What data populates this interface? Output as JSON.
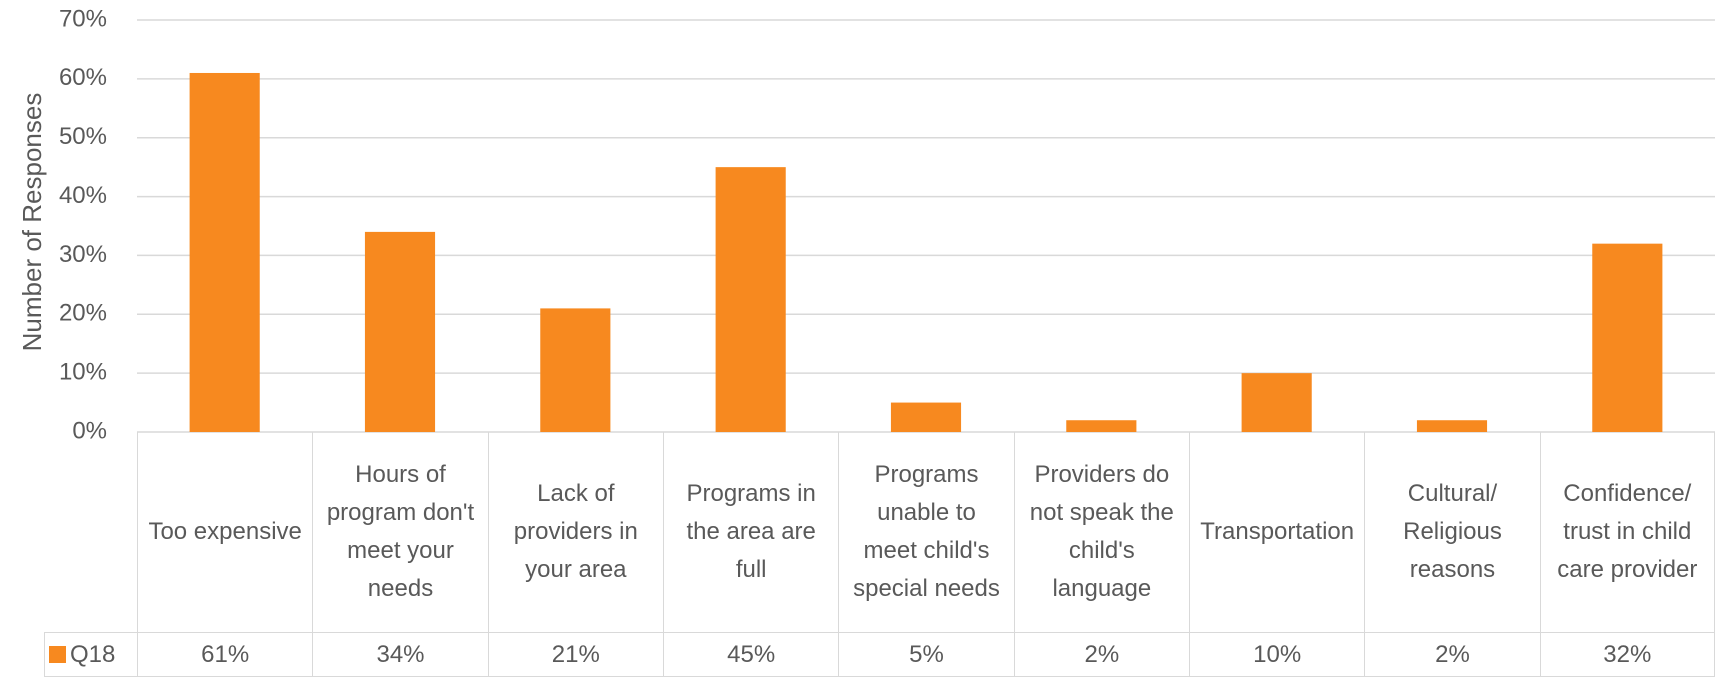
{
  "chart_data": {
    "type": "bar",
    "y_label": "Number of Responses",
    "categories": [
      "Too expensive",
      "Hours of program don't meet your needs",
      "Lack of providers in your area",
      "Programs in the area are full",
      "Programs unable to meet child's special needs",
      "Providers do not speak the child's language",
      "Transportation",
      "Cultural/ Religious reasons",
      "Confidence/ trust in child care provider"
    ],
    "series": [
      {
        "name": "Q18",
        "color": "#f7891f",
        "values": [
          61,
          34,
          21,
          45,
          5,
          2,
          10,
          2,
          32
        ],
        "value_labels": [
          "61%",
          "34%",
          "21%",
          "45%",
          "5%",
          "2%",
          "10%",
          "2%",
          "32%"
        ]
      }
    ],
    "ylim": [
      0,
      70
    ],
    "yticks": [
      {
        "value": 0,
        "label": "0%"
      },
      {
        "value": 10,
        "label": "10%"
      },
      {
        "value": 20,
        "label": "20%"
      },
      {
        "value": 30,
        "label": "30%"
      },
      {
        "value": 40,
        "label": "40%"
      },
      {
        "value": 50,
        "label": "50%"
      },
      {
        "value": 60,
        "label": "60%"
      },
      {
        "value": 70,
        "label": "70%"
      }
    ],
    "grid": true
  }
}
